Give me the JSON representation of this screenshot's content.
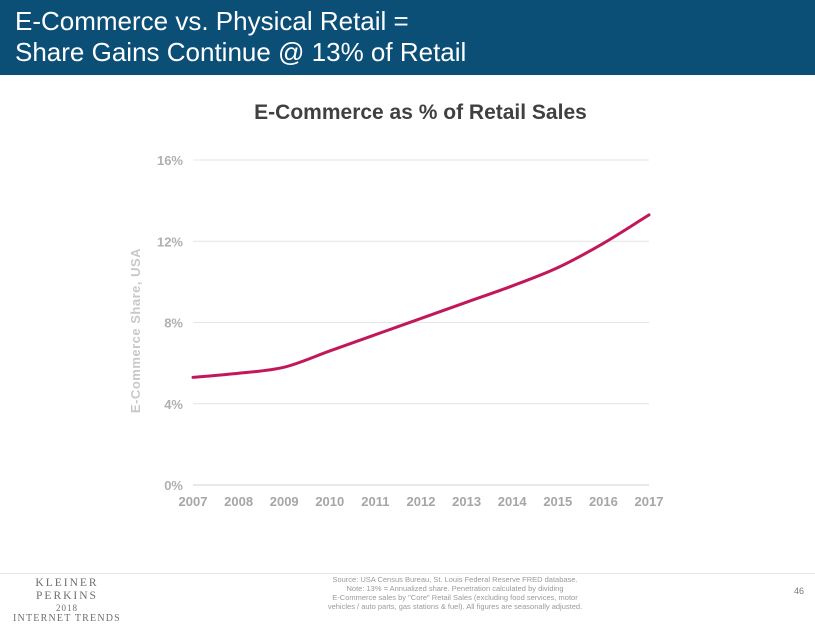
{
  "slide": {
    "title_line1": "E-Commerce vs. Physical Retail =",
    "title_line2": "Share Gains Continue @ 13% of Retail",
    "header_color": "#0b4f77",
    "page_number": "46"
  },
  "brand": {
    "line1": "KLEINER PERKINS",
    "line2": "2018",
    "line3": "INTERNET TRENDS"
  },
  "source": {
    "lines": [
      "Source: USA Census Bureau, St. Louis Federal Reserve FRED database.",
      "Note: 13% = Annualized share.  Penetration calculated by dividing",
      "E-Commerce sales by \"Core\" Retail Sales (excluding food services, motor",
      "vehicles / auto parts, gas stations & fuel). All figures are seasonally adjusted."
    ]
  },
  "chart_data": {
    "type": "line",
    "title": "E-Commerce as % of Retail Sales",
    "ylabel": "E-Commerce Share, USA",
    "xlabel": "",
    "x": [
      2007,
      2008,
      2009,
      2010,
      2011,
      2012,
      2013,
      2014,
      2015,
      2016,
      2017
    ],
    "x_tick_labels": [
      "2007",
      "2008",
      "2009",
      "2010",
      "2011",
      "2012",
      "2013",
      "2014",
      "2015",
      "2016",
      "2017"
    ],
    "y_ticks": [
      0,
      4,
      8,
      12,
      16
    ],
    "y_tick_labels": [
      "0%",
      "4%",
      "8%",
      "12%",
      "16%"
    ],
    "ylim": [
      0,
      16
    ],
    "series": [
      {
        "values": [
          5.3,
          5.5,
          5.8,
          6.6,
          7.4,
          8.2,
          9.0,
          9.8,
          10.7,
          11.9,
          13.3
        ],
        "color": "#c2185b"
      }
    ],
    "grid": true,
    "legend": "none"
  }
}
